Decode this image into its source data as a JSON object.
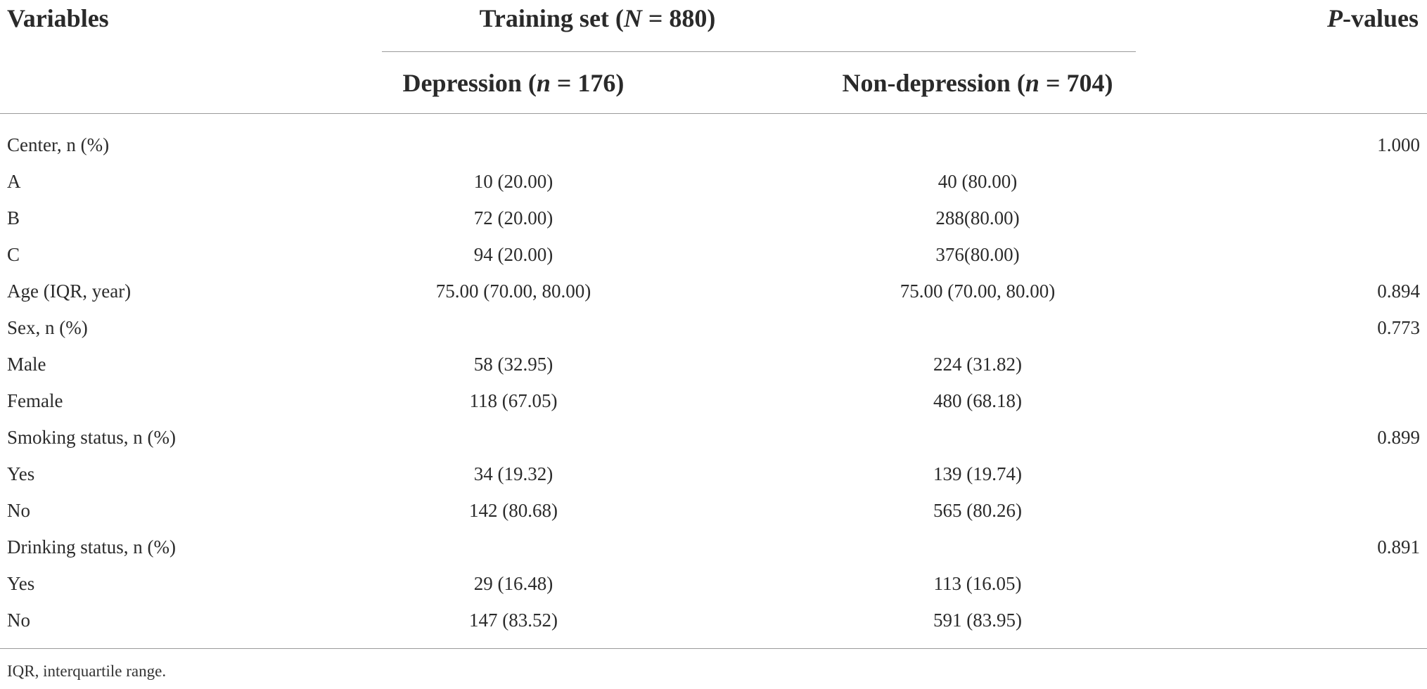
{
  "header": {
    "variables": "Variables",
    "training_prefix": "Training set (",
    "training_N": "N",
    "training_suffix": " = 880)",
    "pvalues_italic": "P",
    "pvalues_rest": "-values",
    "dep_prefix": "Depression (",
    "dep_n": "n",
    "dep_suffix": " = 176)",
    "nondep_prefix": "Non-depression (",
    "nondep_n": "n",
    "nondep_suffix": " = 704)"
  },
  "rows": [
    {
      "variable": "Center, n (%)",
      "depression": "",
      "non_depression": "",
      "p_value": "1.000"
    },
    {
      "variable": "A",
      "depression": "10 (20.00)",
      "non_depression": "40 (80.00)",
      "p_value": ""
    },
    {
      "variable": "B",
      "depression": "72 (20.00)",
      "non_depression": "288(80.00)",
      "p_value": ""
    },
    {
      "variable": "C",
      "depression": "94 (20.00)",
      "non_depression": "376(80.00)",
      "p_value": ""
    },
    {
      "variable": "Age (IQR, year)",
      "depression": "75.00 (70.00, 80.00)",
      "non_depression": "75.00 (70.00, 80.00)",
      "p_value": "0.894"
    },
    {
      "variable": "Sex, n (%)",
      "depression": "",
      "non_depression": "",
      "p_value": "0.773"
    },
    {
      "variable": "Male",
      "depression": "58 (32.95)",
      "non_depression": "224 (31.82)",
      "p_value": ""
    },
    {
      "variable": "Female",
      "depression": "118 (67.05)",
      "non_depression": "480 (68.18)",
      "p_value": ""
    },
    {
      "variable": "Smoking status, n (%)",
      "depression": "",
      "non_depression": "",
      "p_value": "0.899"
    },
    {
      "variable": "Yes",
      "depression": "34 (19.32)",
      "non_depression": "139 (19.74)",
      "p_value": ""
    },
    {
      "variable": "No",
      "depression": "142 (80.68)",
      "non_depression": "565 (80.26)",
      "p_value": ""
    },
    {
      "variable": "Drinking status, n (%)",
      "depression": "",
      "non_depression": "",
      "p_value": "0.891"
    },
    {
      "variable": "Yes",
      "depression": "29 (16.48)",
      "non_depression": "113 (16.05)",
      "p_value": ""
    },
    {
      "variable": "No",
      "depression": "147 (83.52)",
      "non_depression": "591 (83.95)",
      "p_value": ""
    }
  ],
  "footnote": "IQR, interquartile range."
}
